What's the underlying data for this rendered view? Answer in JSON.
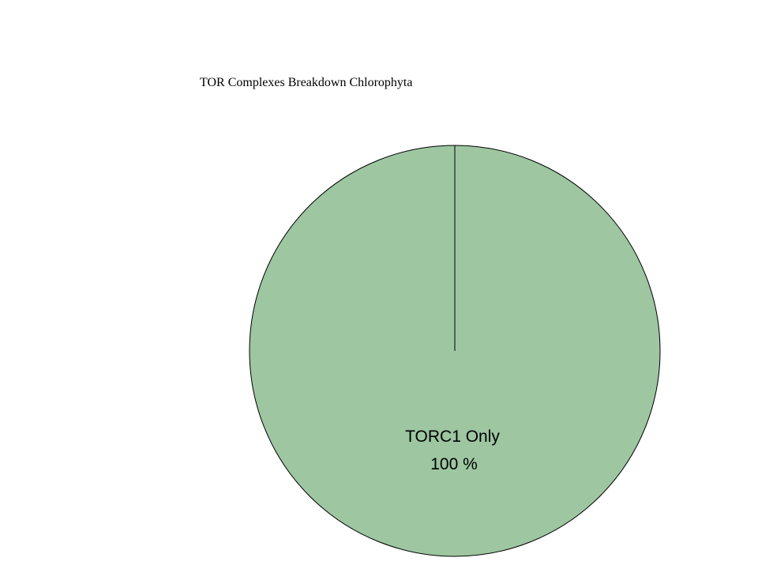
{
  "chart_data": {
    "type": "pie",
    "title": "TOR Complexes Breakdown Chlorophyta",
    "slices": [
      {
        "label": "TORC1 Only",
        "value": 100,
        "value_label": "100 %",
        "color": "#9dc6a1"
      }
    ],
    "start_angle": "12 o'clock",
    "direction": "clockwise",
    "outline_color": "#000000",
    "legend": "none"
  }
}
